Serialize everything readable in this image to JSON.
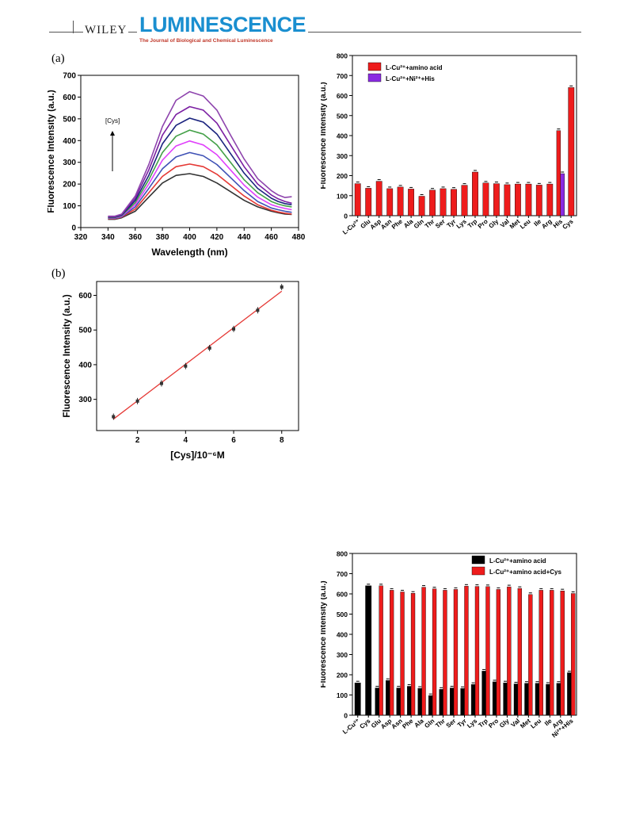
{
  "header": {
    "publisher": "WILEY",
    "journal": "LUMINESCENCE",
    "journal_subtitle": "The Journal of Biological and Chemical Luminescence"
  },
  "panels": {
    "a": "(a)",
    "b": "(b)"
  },
  "chart_data": [
    {
      "type": "line",
      "xlabel": "Wavelength (nm)",
      "ylabel": "Fluorescence Intensity (a.u.)",
      "xlim": [
        320,
        480
      ],
      "ylim": [
        0,
        700
      ],
      "xticks": [
        320,
        340,
        360,
        380,
        400,
        420,
        440,
        460,
        480
      ],
      "yticks": [
        0,
        100,
        200,
        300,
        400,
        500,
        600,
        700
      ],
      "annotation": "[Cys]",
      "x": [
        340,
        345,
        350,
        360,
        370,
        380,
        390,
        400,
        410,
        420,
        430,
        440,
        450,
        460,
        465,
        470,
        475
      ],
      "series": [
        {
          "color": "#333333",
          "values": [
            38,
            38,
            45,
            75,
            140,
            205,
            240,
            248,
            235,
            205,
            165,
            125,
            95,
            75,
            68,
            62,
            60
          ]
        },
        {
          "color": "#e53935",
          "values": [
            40,
            40,
            48,
            85,
            160,
            235,
            280,
            292,
            280,
            245,
            195,
            145,
            105,
            80,
            72,
            66,
            62
          ]
        },
        {
          "color": "#3f51b5",
          "values": [
            42,
            42,
            50,
            95,
            180,
            270,
            325,
            345,
            330,
            290,
            230,
            170,
            120,
            90,
            82,
            75,
            70
          ]
        },
        {
          "color": "#e040fb",
          "values": [
            44,
            44,
            52,
            105,
            200,
            310,
            375,
            398,
            380,
            335,
            265,
            195,
            140,
            105,
            95,
            88,
            82
          ]
        },
        {
          "color": "#43a047",
          "values": [
            46,
            46,
            55,
            115,
            220,
            345,
            420,
            448,
            430,
            380,
            300,
            220,
            160,
            120,
            108,
            100,
            95
          ]
        },
        {
          "color": "#1a237e",
          "values": [
            48,
            48,
            57,
            125,
            240,
            385,
            470,
            503,
            485,
            430,
            340,
            250,
            180,
            135,
            120,
            110,
            105
          ]
        },
        {
          "color": "#7b1fa2",
          "values": [
            50,
            50,
            60,
            135,
            265,
            425,
            520,
            556,
            540,
            480,
            380,
            280,
            200,
            150,
            132,
            120,
            112
          ]
        },
        {
          "color": "#8e44ad",
          "values": [
            52,
            52,
            62,
            145,
            290,
            465,
            585,
            625,
            605,
            540,
            425,
            315,
            225,
            170,
            150,
            138,
            142
          ]
        }
      ]
    },
    {
      "type": "bar",
      "ylabel": "Fluorescence Intensity (a.u.)",
      "ylim": [
        0,
        800
      ],
      "yticks": [
        0,
        100,
        200,
        300,
        400,
        500,
        600,
        700,
        800
      ],
      "legend": [
        "L-Cu²⁺+amino acid",
        "L-Cu²⁺+Ni²⁺+His"
      ],
      "legend_position": "top-left",
      "categories": [
        "L-Cu²⁺",
        "Glu",
        "Asp",
        "Asn",
        "Phe",
        "Ala",
        "Gln",
        "Thr",
        "Ser",
        "Tyr",
        "Lys",
        "Trp",
        "Pro",
        "Gly",
        "Val",
        "Met",
        "Leu",
        "Ile",
        "Arg",
        "His",
        "Cys"
      ],
      "series": [
        {
          "name": "L-Cu²⁺+amino acid",
          "color": "#ee1c1c",
          "values": [
            160,
            137,
            172,
            135,
            143,
            133,
            97,
            128,
            135,
            132,
            152,
            218,
            163,
            160,
            155,
            158,
            158,
            153,
            158,
            425,
            640
          ]
        },
        {
          "name": "L-Cu²⁺+Ni²⁺+His",
          "color": "#8a2be2",
          "values": [
            null,
            null,
            null,
            null,
            null,
            null,
            null,
            null,
            null,
            null,
            null,
            null,
            null,
            null,
            null,
            null,
            null,
            null,
            null,
            210,
            null
          ]
        }
      ]
    },
    {
      "type": "scatter",
      "xlabel": "[Cys]/10⁻⁶M",
      "ylabel": "Fluorescence Intensity (a.u.)",
      "xlim": [
        0.3,
        8.7
      ],
      "ylim": [
        210,
        640
      ],
      "xticks": [
        2,
        4,
        6,
        8
      ],
      "yticks": [
        300,
        400,
        500,
        600
      ],
      "x": [
        1,
        2,
        3,
        4,
        5,
        6,
        7,
        8
      ],
      "values": [
        250,
        295,
        346,
        396,
        448,
        503,
        557,
        624
      ],
      "fit": [
        [
          1,
          243
        ],
        [
          8,
          612
        ]
      ]
    },
    {
      "type": "bar",
      "ylabel": "Fluorescence Intensity (a.u.)",
      "ylim": [
        0,
        800
      ],
      "yticks": [
        0,
        100,
        200,
        300,
        400,
        500,
        600,
        700,
        800
      ],
      "legend": [
        "L-Cu²⁺+amino acid",
        "L-Cu²⁺+amino acid+Cys"
      ],
      "legend_position": "top-right",
      "categories": [
        "L-Cu²⁺",
        "Cys",
        "Glu",
        "Asp",
        "Asn",
        "Phe",
        "Ala",
        "Gln",
        "Thr",
        "Ser",
        "Tyr",
        "Lys",
        "Trp",
        "Pro",
        "Gly",
        "Val",
        "Met",
        "Leu",
        "Ile",
        "Arg",
        "Ni²⁺+His"
      ],
      "series": [
        {
          "name": "L-Cu²⁺+amino acid",
          "color": "#000000",
          "values": [
            160,
            640,
            135,
            172,
            135,
            143,
            133,
            97,
            128,
            135,
            132,
            152,
            218,
            165,
            160,
            155,
            158,
            158,
            153,
            158,
            210
          ]
        },
        {
          "name": "L-Cu²⁺+amino acid+Cys",
          "color": "#ee1c1c",
          "values": [
            null,
            null,
            640,
            618,
            610,
            603,
            633,
            625,
            618,
            622,
            638,
            637,
            636,
            622,
            635,
            627,
            597,
            618,
            618,
            615,
            602
          ]
        }
      ]
    }
  ]
}
